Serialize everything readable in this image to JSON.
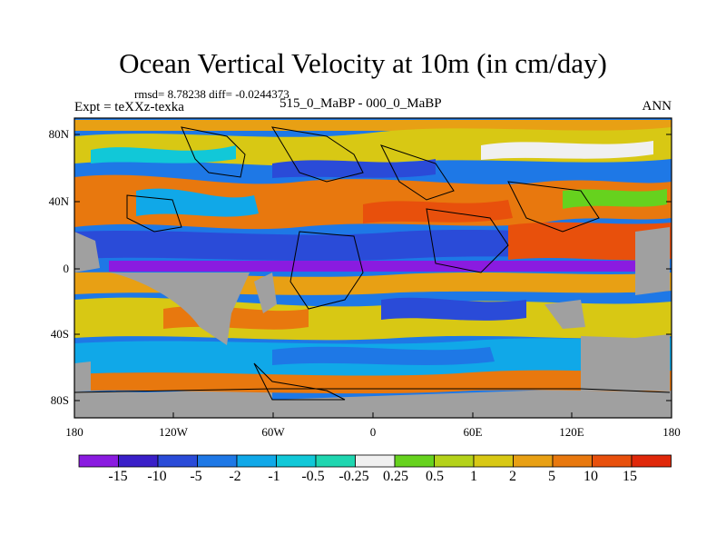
{
  "title": "Ocean Vertical Velocity at 10m (in cm/day)",
  "stats_line": "rmsd= 8.78238  diff= -0.0244373",
  "expt_label": "Expt = teXXz-texka",
  "subtitle": "515_0_MaBP - 000_0_MaBP",
  "season": "ANN",
  "lat_labels": [
    "80N",
    "40N",
    "0",
    "40S",
    "80S"
  ],
  "lon_labels": [
    "180",
    "120W",
    "60W",
    "0",
    "60E",
    "120E",
    "180"
  ],
  "colorbar": {
    "labels": [
      "-15",
      "-10",
      "-5",
      "-2",
      "-1",
      "-0.5",
      "-0.25",
      "0.25",
      "0.5",
      "1",
      "2",
      "5",
      "10",
      "15"
    ],
    "colors": [
      "#8a1be0",
      "#3a1fc8",
      "#2a4bd8",
      "#1e78e6",
      "#10a8e8",
      "#11c8d8",
      "#1fd6b0",
      "#f0f0f0",
      "#66d21e",
      "#b4d21a",
      "#d8c814",
      "#e8a014",
      "#e8780e",
      "#e8500c",
      "#e0280a"
    ]
  },
  "colors": {
    "land": "#a0a0a0",
    "missing": "#ffffff"
  }
}
